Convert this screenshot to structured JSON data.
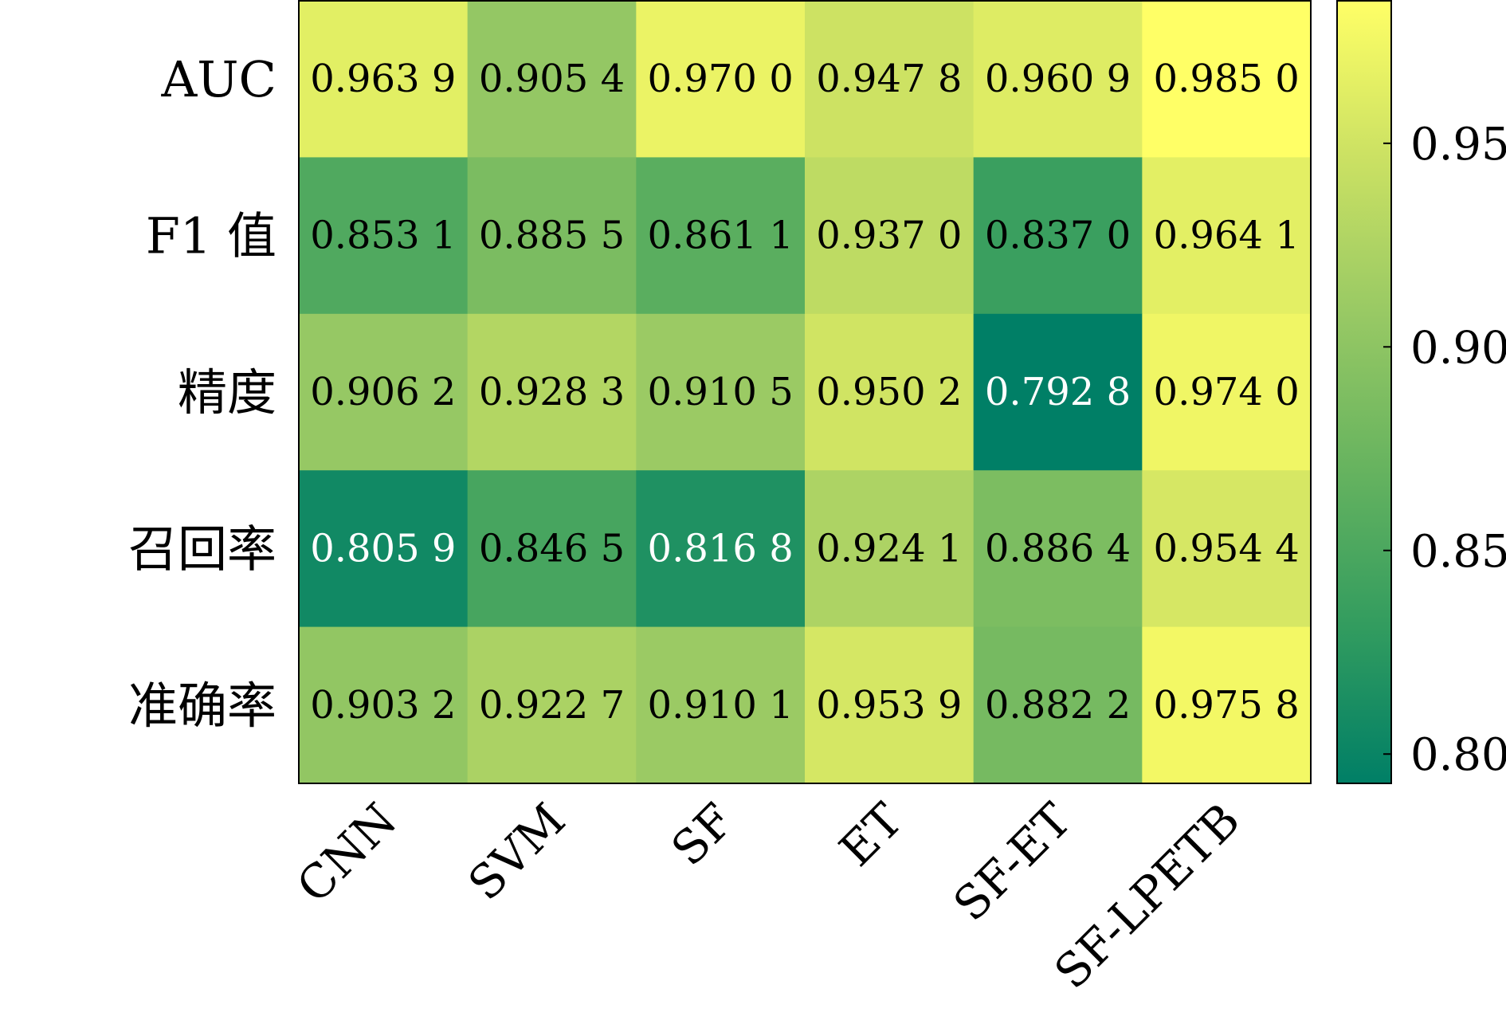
{
  "chart_data": {
    "type": "heatmap",
    "title": "",
    "xlabel": "",
    "ylabel": "",
    "x_categories": [
      "CNN",
      "SVM",
      "SF",
      "ET",
      "SF-ET",
      "SF-LPETB"
    ],
    "y_categories": [
      "AUC",
      "F1 值",
      "精度",
      "召回率",
      "准确率"
    ],
    "values": [
      [
        0.9639,
        0.9054,
        0.97,
        0.9478,
        0.9609,
        0.985
      ],
      [
        0.8531,
        0.8855,
        0.8611,
        0.937,
        0.837,
        0.9641
      ],
      [
        0.9062,
        0.9283,
        0.9105,
        0.9502,
        0.7928,
        0.974
      ],
      [
        0.8059,
        0.8465,
        0.8168,
        0.9241,
        0.8864,
        0.9544
      ],
      [
        0.9032,
        0.9227,
        0.9101,
        0.9539,
        0.8822,
        0.9758
      ]
    ],
    "cell_labels": [
      [
        "0.963 9",
        "0.905 4",
        "0.970 0",
        "0.947 8",
        "0.960 9",
        "0.985 0"
      ],
      [
        "0.853 1",
        "0.885 5",
        "0.861 1",
        "0.937 0",
        "0.837 0",
        "0.964 1"
      ],
      [
        "0.906 2",
        "0.928 3",
        "0.910 5",
        "0.950 2",
        "0.792 8",
        "0.974 0"
      ],
      [
        "0.805 9",
        "0.846 5",
        "0.816 8",
        "0.924 1",
        "0.886 4",
        "0.954 4"
      ],
      [
        "0.903 2",
        "0.922 7",
        "0.910 1",
        "0.953 9",
        "0.882 2",
        "0.975 8"
      ]
    ],
    "colorbar": {
      "min": 0.7928,
      "max": 0.985,
      "ticks": [
        0.8,
        0.85,
        0.9,
        0.95
      ],
      "tick_labels": [
        "0.80",
        "0.85",
        "0.90",
        "0.95"
      ],
      "colormap": [
        "#007f66",
        "#329c5f",
        "#66b35f",
        "#98c964",
        "#cbe163",
        "#ffff66"
      ]
    },
    "grid": false,
    "legend": "colorbar-right"
  }
}
